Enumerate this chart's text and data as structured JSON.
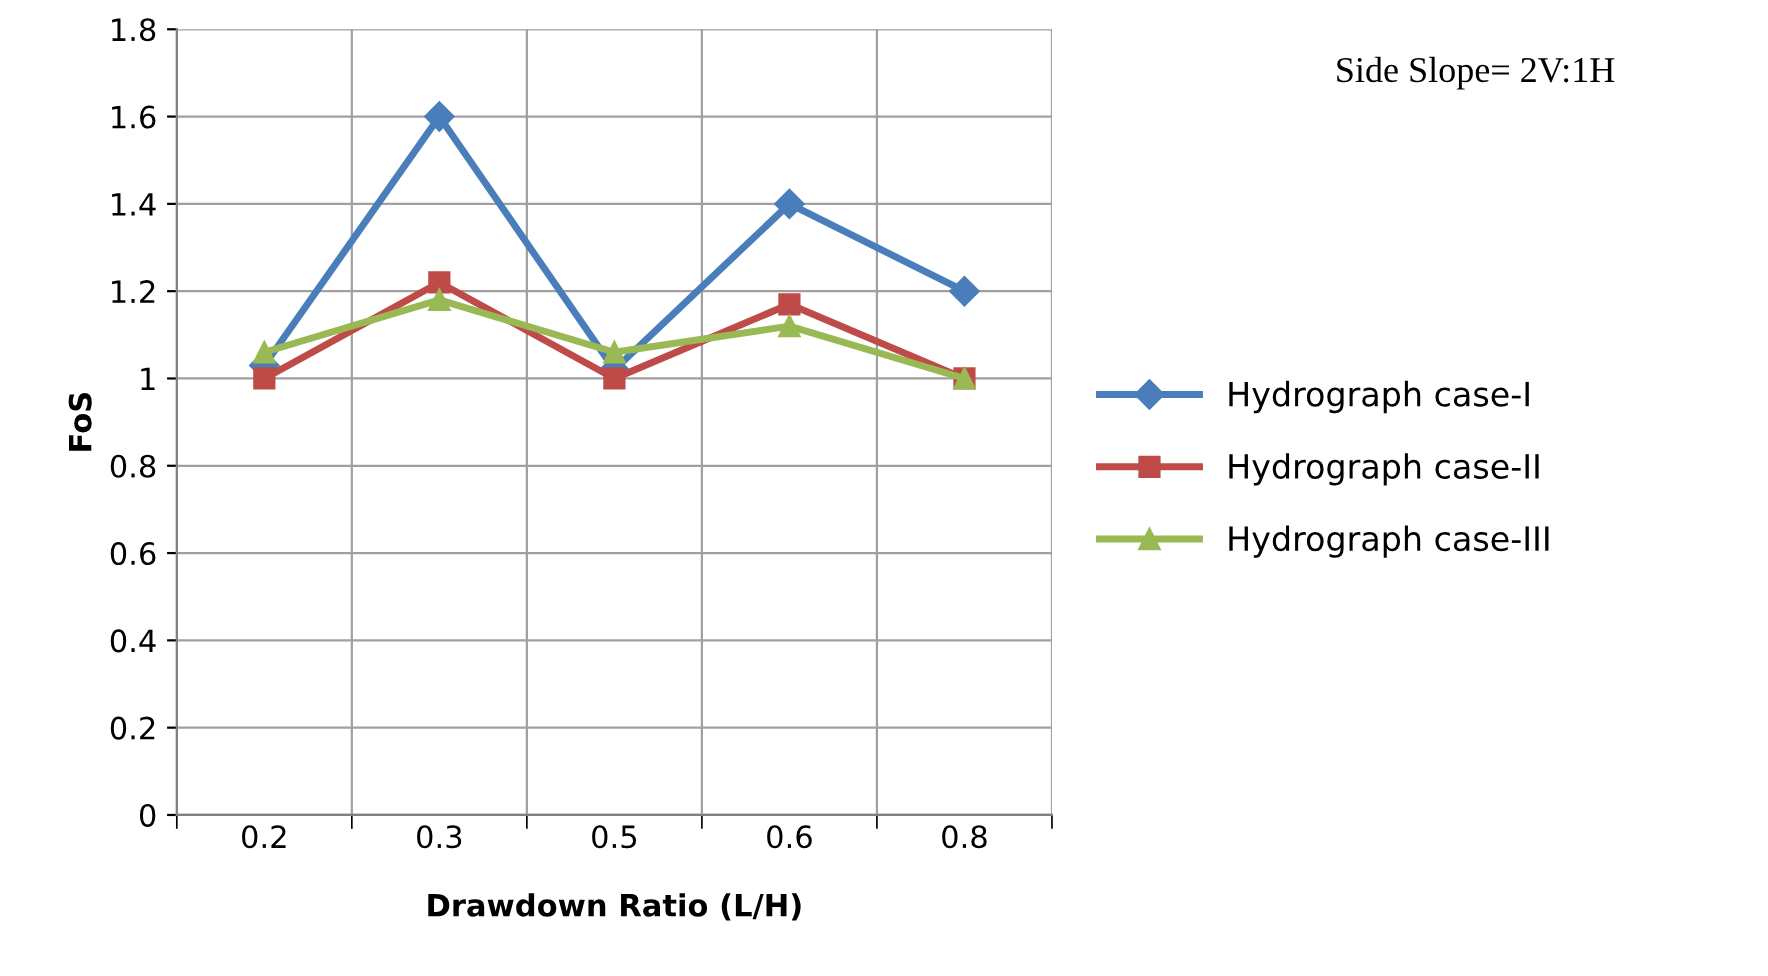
{
  "chart_data": {
    "type": "line",
    "xlabel": "Drawdown Ratio (L/H)",
    "ylabel": "FoS",
    "categories": [
      "0.2",
      "0.3",
      "0.5",
      "0.6",
      "0.8"
    ],
    "series": [
      {
        "name": "Hydrograph case-I",
        "color": "#4a7ebb",
        "marker": "diamond",
        "values": [
          1.03,
          1.6,
          1.02,
          1.4,
          1.2
        ]
      },
      {
        "name": "Hydrograph case-II",
        "color": "#be4b48",
        "marker": "square",
        "values": [
          1.0,
          1.22,
          1.0,
          1.17,
          1.0
        ]
      },
      {
        "name": "Hydrograph case-III",
        "color": "#98b954",
        "marker": "triangle",
        "values": [
          1.06,
          1.18,
          1.06,
          1.12,
          1.0
        ]
      }
    ],
    "ylim": [
      0,
      1.8
    ],
    "yticks": [
      0,
      {
        "value": 0.2,
        "label": "0.2"
      },
      {
        "value": 0.4,
        "label": "0.4"
      },
      {
        "value": 0.6,
        "label": "0.6"
      },
      {
        "value": 0.8,
        "label": "0.8"
      },
      1,
      {
        "value": 1.2,
        "label": "1.2"
      },
      {
        "value": 1.4,
        "label": "1.4"
      },
      {
        "value": 1.6,
        "label": "1.6"
      },
      {
        "value": 1.8,
        "label": "1.8"
      }
    ],
    "grid": true,
    "legend": "right",
    "line_style": "solid",
    "annotations": [
      "Side Slope= 2V:1H"
    ]
  }
}
